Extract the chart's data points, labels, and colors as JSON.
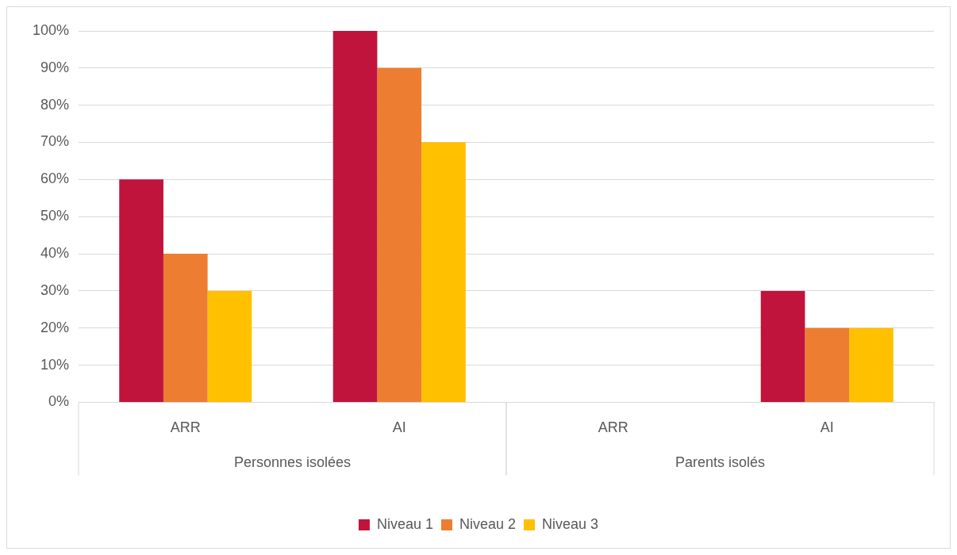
{
  "chart_data": {
    "type": "bar",
    "categories": [
      "ARR",
      "AI",
      "ARR",
      "AI"
    ],
    "series": [
      {
        "name": "Niveau 1",
        "color": "#c0143c",
        "values": [
          60,
          100,
          0,
          30
        ]
      },
      {
        "name": "Niveau 2",
        "color": "#ed7d31",
        "values": [
          40,
          90,
          0,
          20
        ]
      },
      {
        "name": "Niveau 3",
        "color": "#ffc000",
        "values": [
          30,
          70,
          0,
          20
        ]
      }
    ],
    "ylim": [
      0,
      100
    ],
    "yticks": [
      {
        "value": 0,
        "label": "0%"
      },
      {
        "value": 10,
        "label": "10%"
      },
      {
        "value": 20,
        "label": "20%"
      },
      {
        "value": 30,
        "label": "30%"
      },
      {
        "value": 40,
        "label": "40%"
      },
      {
        "value": 50,
        "label": "50%"
      },
      {
        "value": 60,
        "label": "60%"
      },
      {
        "value": 70,
        "label": "70%"
      },
      {
        "value": 80,
        "label": "80%"
      },
      {
        "value": 90,
        "label": "90%"
      },
      {
        "value": 100,
        "label": "100%"
      }
    ],
    "annotations": [
      "Personnes isolées",
      "Parents isolés"
    ],
    "grid": "y",
    "legend": "bottom"
  }
}
